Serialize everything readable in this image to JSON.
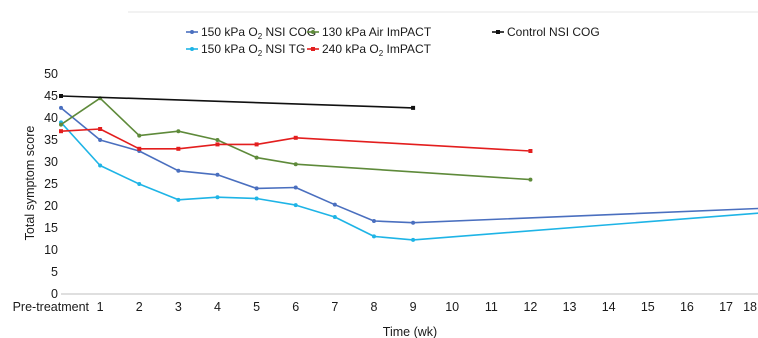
{
  "chart_data": {
    "type": "line",
    "title": "",
    "xlabel": "Time (wk)",
    "ylabel": "Total symptom score",
    "x": [
      0,
      1,
      2,
      3,
      4,
      5,
      6,
      7,
      8,
      9,
      10,
      11,
      12,
      13,
      14,
      15,
      16,
      17,
      18
    ],
    "x_tick_labels": [
      "Pre-treatment",
      "1",
      "2",
      "3",
      "4",
      "5",
      "6",
      "7",
      "8",
      "9",
      "10",
      "11",
      "12",
      "13",
      "14",
      "15",
      "16",
      "17",
      "18"
    ],
    "y_ticks": [
      "0",
      "5",
      "10",
      "15",
      "20",
      "25",
      "30",
      "35",
      "40",
      "45",
      "50"
    ],
    "ylim": [
      0,
      50
    ],
    "grid": false,
    "legend_position": "top",
    "series": [
      {
        "name": "150 kPa O2 NSI COG",
        "name_base": "150 kPa O",
        "name_sub": "2",
        "name_rest": " NSI COG",
        "color": "#4a6fbf",
        "marker": "circle",
        "points": [
          [
            0,
            42.3
          ],
          [
            1,
            35
          ],
          [
            2,
            32.5
          ],
          [
            3,
            28
          ],
          [
            4,
            27.1
          ],
          [
            5,
            24
          ],
          [
            6,
            24.2
          ],
          [
            7,
            20.3
          ],
          [
            8,
            16.6
          ],
          [
            9,
            16.2
          ],
          [
            18,
            19.5
          ]
        ]
      },
      {
        "name": "150 kPa O2 NSI TG",
        "name_base": "150 kPa O",
        "name_sub": "2",
        "name_rest": " NSI TG",
        "color": "#1eb4e6",
        "marker": "circle",
        "points": [
          [
            0,
            39
          ],
          [
            1,
            29.2
          ],
          [
            2,
            25
          ],
          [
            3,
            21.4
          ],
          [
            4,
            22
          ],
          [
            5,
            21.7
          ],
          [
            6,
            20.2
          ],
          [
            7,
            17.5
          ],
          [
            8,
            13.1
          ],
          [
            9,
            12.3
          ],
          [
            18,
            18.5
          ]
        ]
      },
      {
        "name": "130 kPa Air ImPACT",
        "name_base": "130 kPa Air ImPACT",
        "name_sub": "",
        "name_rest": "",
        "color": "#5e8a3a",
        "marker": "circle",
        "points": [
          [
            0,
            38.5
          ],
          [
            1,
            44.5
          ],
          [
            2,
            36
          ],
          [
            3,
            37
          ],
          [
            4,
            35
          ],
          [
            5,
            31
          ],
          [
            6,
            29.5
          ],
          [
            12,
            26
          ]
        ]
      },
      {
        "name": "240 kPa O2 ImPACT",
        "name_base": "240 kPa O",
        "name_sub": "2",
        "name_rest": " ImPACT",
        "color": "#e31e1e",
        "marker": "square",
        "points": [
          [
            0,
            37
          ],
          [
            1,
            37.5
          ],
          [
            2,
            33
          ],
          [
            3,
            33
          ],
          [
            4,
            34
          ],
          [
            5,
            34
          ],
          [
            6,
            35.5
          ],
          [
            12,
            32.5
          ]
        ]
      },
      {
        "name": "Control NSI COG",
        "name_base": "Control NSI COG",
        "name_sub": "",
        "name_rest": "",
        "color": "#111111",
        "marker": "square",
        "points": [
          [
            0,
            45
          ],
          [
            9,
            42.3
          ]
        ]
      }
    ]
  }
}
